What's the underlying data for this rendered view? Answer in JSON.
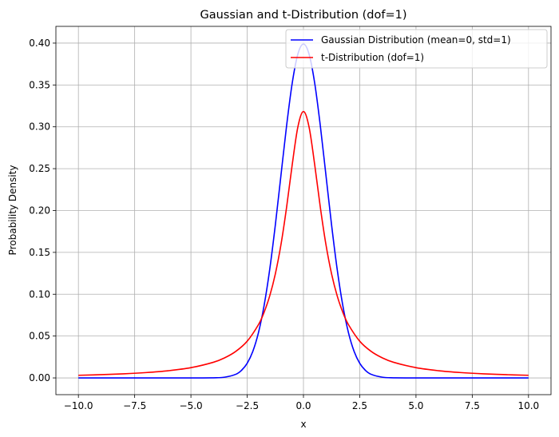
{
  "chart_data": {
    "type": "line",
    "title": "Gaussian and t-Distribution (dof=1)",
    "xlabel": "x",
    "ylabel": "Probability Density",
    "xlim": [
      -11.0,
      11.0
    ],
    "ylim": [
      -0.02,
      0.42
    ],
    "x_ticks": [
      -10.0,
      -7.5,
      -5.0,
      -2.5,
      0.0,
      2.5,
      5.0,
      7.5,
      10.0
    ],
    "x_tick_labels": [
      "−10.0",
      "−7.5",
      "−5.0",
      "−2.5",
      "0.0",
      "2.5",
      "5.0",
      "7.5",
      "10.0"
    ],
    "y_ticks": [
      0.0,
      0.05,
      0.1,
      0.15,
      0.2,
      0.25,
      0.3,
      0.35,
      0.4
    ],
    "y_tick_labels": [
      "0.00",
      "0.05",
      "0.10",
      "0.15",
      "0.20",
      "0.25",
      "0.30",
      "0.35",
      "0.40"
    ],
    "grid": true,
    "legend_position": "top-right",
    "series": [
      {
        "name": "Gaussian Distribution (mean=0, std=1)",
        "color": "#0000ff",
        "x": [
          -10,
          -5,
          -4,
          -3.5,
          -3,
          -2.75,
          -2.5,
          -2.25,
          -2,
          -1.75,
          -1.5,
          -1.25,
          -1,
          -0.75,
          -0.5,
          -0.25,
          0,
          0.25,
          0.5,
          0.75,
          1,
          1.25,
          1.5,
          1.75,
          2,
          2.25,
          2.5,
          2.75,
          3,
          3.5,
          4,
          5,
          10
        ],
        "y": [
          0.0,
          1.5e-06,
          0.00013,
          0.00087,
          0.0044,
          0.0091,
          0.0175,
          0.0317,
          0.054,
          0.0863,
          0.1295,
          0.1826,
          0.242,
          0.3011,
          0.3521,
          0.3867,
          0.3989,
          0.3867,
          0.3521,
          0.3011,
          0.242,
          0.1826,
          0.1295,
          0.0863,
          0.054,
          0.0317,
          0.0175,
          0.0091,
          0.0044,
          0.00087,
          0.00013,
          1.5e-06,
          0.0
        ]
      },
      {
        "name": "t-Distribution (dof=1)",
        "color": "#ff0000",
        "x": [
          -10,
          -9,
          -8,
          -7,
          -6,
          -5,
          -4,
          -3.5,
          -3,
          -2.5,
          -2,
          -1.75,
          -1.5,
          -1.25,
          -1,
          -0.75,
          -0.5,
          -0.25,
          0,
          0.25,
          0.5,
          0.75,
          1,
          1.25,
          1.5,
          1.75,
          2,
          2.5,
          3,
          3.5,
          4,
          5,
          6,
          7,
          8,
          9,
          10
        ],
        "y": [
          0.00315,
          0.00389,
          0.0049,
          0.00637,
          0.0086,
          0.01224,
          0.01872,
          0.02401,
          0.03183,
          0.0439,
          0.06366,
          0.07835,
          0.09794,
          0.1242,
          0.15915,
          0.20372,
          0.25465,
          0.29959,
          0.31831,
          0.29959,
          0.25465,
          0.20372,
          0.15915,
          0.1242,
          0.09794,
          0.07835,
          0.06366,
          0.0439,
          0.03183,
          0.02401,
          0.01872,
          0.01224,
          0.0086,
          0.00637,
          0.0049,
          0.00389,
          0.00315
        ]
      }
    ]
  }
}
